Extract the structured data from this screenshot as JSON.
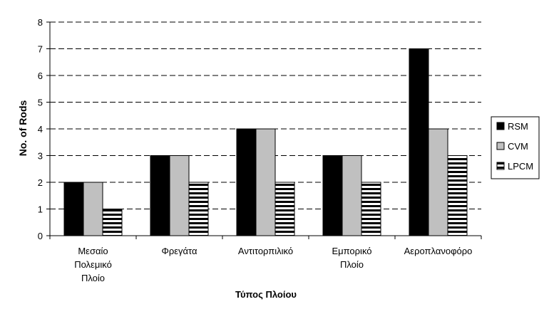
{
  "chart_data": {
    "type": "bar",
    "title": "",
    "xlabel": "Τύπος Πλοίου",
    "ylabel": "No. of Rods",
    "ylim": [
      0,
      8
    ],
    "yticks": [
      0,
      1,
      2,
      3,
      4,
      5,
      6,
      7,
      8
    ],
    "grid": "horizontal dashed",
    "legend_position": "right",
    "categories": [
      [
        "Μεσαίο",
        "Πολεμικό",
        "Πλοίο"
      ],
      [
        "Φρεγάτα"
      ],
      [
        "Αντιτορπιλικό"
      ],
      [
        "Εμπορικό",
        "Πλοίο"
      ],
      [
        "Αεροπλανοφόρο"
      ]
    ],
    "series": [
      {
        "name": "RSM",
        "values": [
          2,
          3,
          4,
          3,
          7
        ],
        "fill": "#000000",
        "pattern": "solid"
      },
      {
        "name": "CVM",
        "values": [
          2,
          3,
          4,
          3,
          4
        ],
        "fill": "#c0c0c0",
        "pattern": "solid"
      },
      {
        "name": "LPCM",
        "values": [
          1,
          2,
          2,
          2,
          3
        ],
        "fill": "#ffffff",
        "pattern": "horizontal-stripes"
      }
    ]
  }
}
